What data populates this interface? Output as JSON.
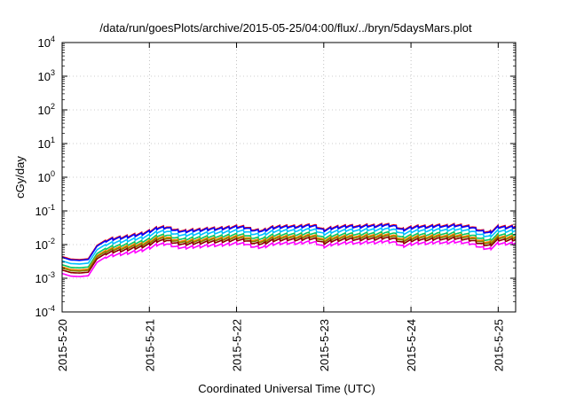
{
  "chart_data": {
    "type": "line",
    "title": "/data/run/goesPlots/archive/2015-05-25/04:00/flux/../bryn/5daysMars.plot",
    "xlabel": "Coordinated Universal Time (UTC)",
    "ylabel": "cGy/day",
    "yscale": "log",
    "ylim": [
      0.0001,
      10000
    ],
    "xlim": [
      0,
      5.2
    ],
    "grid": true,
    "x_tick_labels": [
      "2015-5-20",
      "2015-5-21",
      "2015-5-22",
      "2015-5-23",
      "2015-5-24",
      "2015-5-25"
    ],
    "x_tick_positions": [
      0,
      1,
      2,
      3,
      4,
      5
    ],
    "y_ticks": [
      {
        "value": 0.0001,
        "base": "10",
        "exp": "-4"
      },
      {
        "value": 0.001,
        "base": "10",
        "exp": "-3"
      },
      {
        "value": 0.01,
        "base": "10",
        "exp": "-2"
      },
      {
        "value": 0.1,
        "base": "10",
        "exp": "-1"
      },
      {
        "value": 1,
        "base": "10",
        "exp": "0"
      },
      {
        "value": 10,
        "base": "10",
        "exp": "1"
      },
      {
        "value": 100,
        "base": "10",
        "exp": "2"
      },
      {
        "value": 1000,
        "base": "10",
        "exp": "3"
      },
      {
        "value": 10000,
        "base": "10",
        "exp": "4"
      }
    ],
    "x_unit": "days since 2015-5-20 00:00 UTC",
    "base_profile": {
      "x": [
        0,
        0.1,
        0.2,
        0.3,
        0.4,
        0.5,
        0.6,
        0.7,
        0.8,
        0.9,
        1.0,
        1.1,
        1.2,
        1.3,
        1.4,
        1.5,
        1.6,
        1.7,
        1.8,
        1.9,
        2.0,
        2.1,
        2.2,
        2.3,
        2.4,
        2.5,
        2.6,
        2.7,
        2.8,
        2.9,
        3.0,
        3.1,
        3.2,
        3.3,
        3.4,
        3.5,
        3.6,
        3.7,
        3.8,
        3.9,
        4.0,
        4.1,
        4.2,
        4.3,
        4.4,
        4.5,
        4.6,
        4.7,
        4.8,
        4.9,
        5.0,
        5.1,
        5.2
      ],
      "y": [
        0.0042,
        0.0035,
        0.0034,
        0.0036,
        0.009,
        0.013,
        0.015,
        0.016,
        0.018,
        0.02,
        0.024,
        0.031,
        0.032,
        0.026,
        0.024,
        0.026,
        0.027,
        0.029,
        0.029,
        0.031,
        0.033,
        0.032,
        0.026,
        0.025,
        0.031,
        0.033,
        0.034,
        0.033,
        0.036,
        0.035,
        0.026,
        0.031,
        0.033,
        0.035,
        0.033,
        0.036,
        0.035,
        0.038,
        0.036,
        0.027,
        0.031,
        0.034,
        0.033,
        0.036,
        0.034,
        0.037,
        0.035,
        0.032,
        0.025,
        0.022,
        0.033,
        0.032,
        0.034
      ]
    },
    "sawtooth_amplitude": 0.18,
    "sawtooth_period_days": 0.0833,
    "series": [
      {
        "color": "#ff0000",
        "scale": 1.05
      },
      {
        "color": "#0000ff",
        "scale": 1.0
      },
      {
        "color": "#00bfff",
        "scale": 0.78
      },
      {
        "color": "#00c864",
        "scale": 0.6
      },
      {
        "color": "#ff8000",
        "scale": 0.52
      },
      {
        "color": "#808000",
        "scale": 0.48
      },
      {
        "color": "#8b0000",
        "scale": 0.42
      },
      {
        "color": "#ff00ff",
        "scale": 0.33
      }
    ]
  }
}
